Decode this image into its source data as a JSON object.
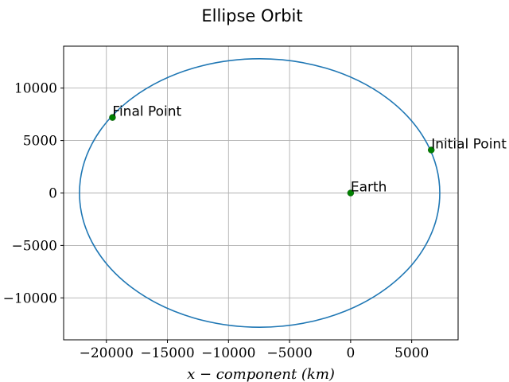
{
  "chart_data": {
    "type": "line",
    "title": "Ellipse Orbit",
    "xlabel": "x − component (km)",
    "ylabel": "",
    "xlim": [
      -23500,
      8800
    ],
    "ylim": [
      -14000,
      14000
    ],
    "grid": true,
    "xticks": [
      -20000,
      -15000,
      -10000,
      -5000,
      0,
      5000
    ],
    "yticks": [
      -10000,
      -5000,
      0,
      5000,
      10000
    ],
    "series": [
      {
        "kind": "ellipse",
        "center": [
          -7450,
          0
        ],
        "semi_major_axis": 14750,
        "semi_minor_axis": 12800,
        "color": "#1f77b4"
      }
    ],
    "points": [
      {
        "label": "Earth",
        "x": 0,
        "y": 0,
        "color": "#008000"
      },
      {
        "label": "Initial Point",
        "x": 6600,
        "y": 4100,
        "color": "#008000"
      },
      {
        "label": "Final Point",
        "x": -19500,
        "y": 7200,
        "color": "#008000"
      }
    ]
  }
}
